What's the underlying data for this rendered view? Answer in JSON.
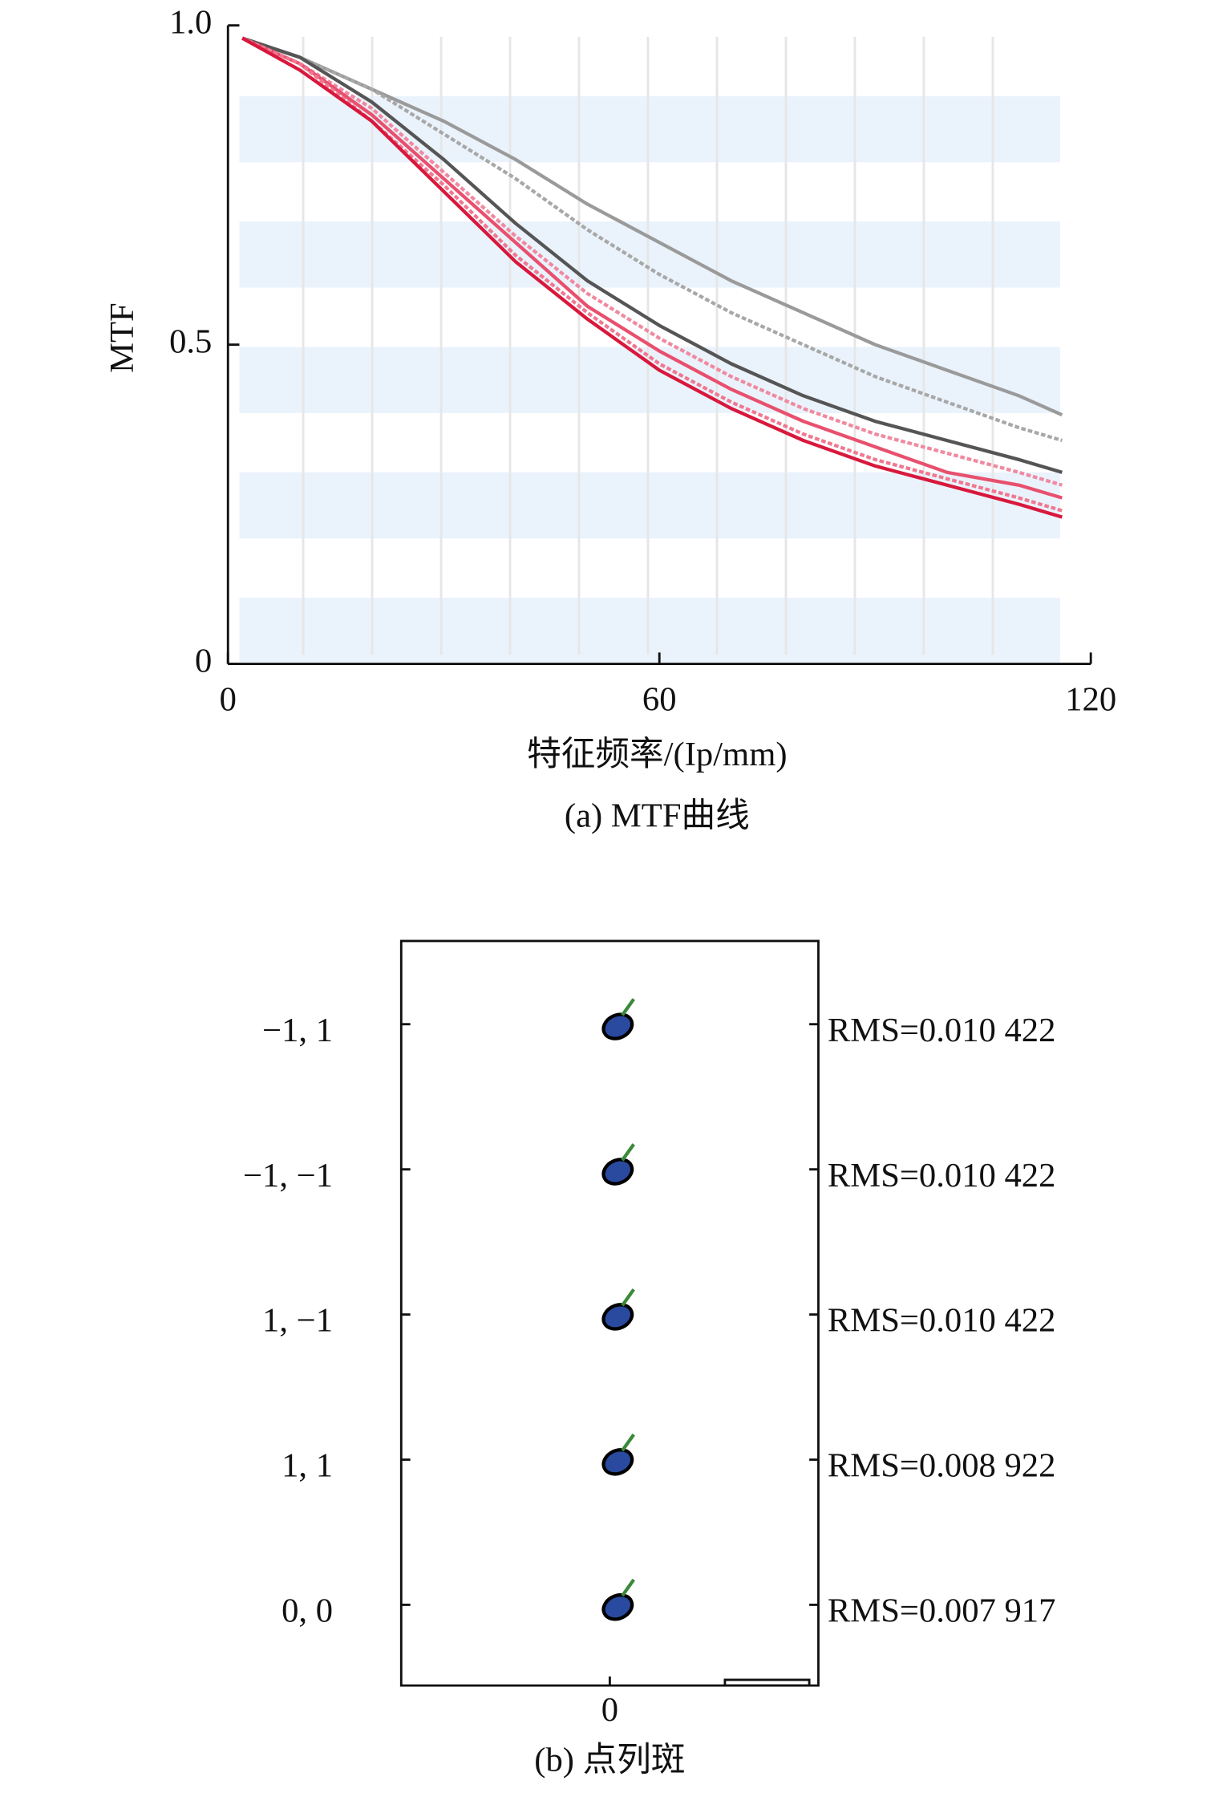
{
  "chart_data": [
    {
      "type": "line",
      "ylabel": "MTF",
      "xlabel": "特征频率/(Ip/mm)",
      "caption": "(a) MTF曲线",
      "x": [
        2,
        10,
        20,
        30,
        40,
        50,
        60,
        70,
        80,
        90,
        100,
        110,
        116
      ],
      "series": [
        {
          "color": "#9a9a9a",
          "values": [
            0.98,
            0.95,
            0.9,
            0.85,
            0.79,
            0.72,
            0.66,
            0.6,
            0.55,
            0.5,
            0.46,
            0.42,
            0.39
          ]
        },
        {
          "color": "#a8a8a8",
          "values": [
            0.98,
            0.95,
            0.9,
            0.83,
            0.76,
            0.68,
            0.61,
            0.55,
            0.5,
            0.45,
            0.41,
            0.37,
            0.35
          ]
        },
        {
          "color": "#555555",
          "values": [
            0.98,
            0.95,
            0.88,
            0.79,
            0.69,
            0.6,
            0.53,
            0.47,
            0.42,
            0.38,
            0.35,
            0.32,
            0.3
          ]
        },
        {
          "color": "#f08aa0",
          "values": [
            0.98,
            0.94,
            0.87,
            0.77,
            0.67,
            0.58,
            0.51,
            0.45,
            0.4,
            0.36,
            0.33,
            0.3,
            0.28
          ]
        },
        {
          "color": "#e8506e",
          "values": [
            0.98,
            0.94,
            0.86,
            0.76,
            0.66,
            0.56,
            0.49,
            0.43,
            0.38,
            0.34,
            0.3,
            0.28,
            0.26
          ]
        },
        {
          "color": "#f07890",
          "values": [
            0.98,
            0.94,
            0.85,
            0.75,
            0.64,
            0.55,
            0.47,
            0.41,
            0.36,
            0.32,
            0.29,
            0.26,
            0.24
          ]
        },
        {
          "color": "#d8183c",
          "values": [
            0.98,
            0.93,
            0.85,
            0.74,
            0.63,
            0.54,
            0.46,
            0.4,
            0.35,
            0.31,
            0.28,
            0.25,
            0.23
          ]
        }
      ],
      "xlim": [
        0,
        120
      ],
      "xticks": [
        0,
        60,
        120
      ],
      "ylim": [
        0,
        1
      ],
      "yticks": [
        0,
        0.5,
        {
          "value": 1,
          "label": "1.0"
        }
      ]
    },
    {
      "type": "spot",
      "caption": "(b) 点列斑",
      "categories": [
        "−1, 1",
        "−1, −1",
        "1, −1",
        "1, 1",
        "0, 0"
      ],
      "annotations": [
        "RMS=0.010 422",
        "RMS=0.010 422",
        "RMS=0.010 422",
        "RMS=0.008 922",
        "RMS=0.007 917"
      ],
      "xticks": [
        0
      ]
    }
  ]
}
